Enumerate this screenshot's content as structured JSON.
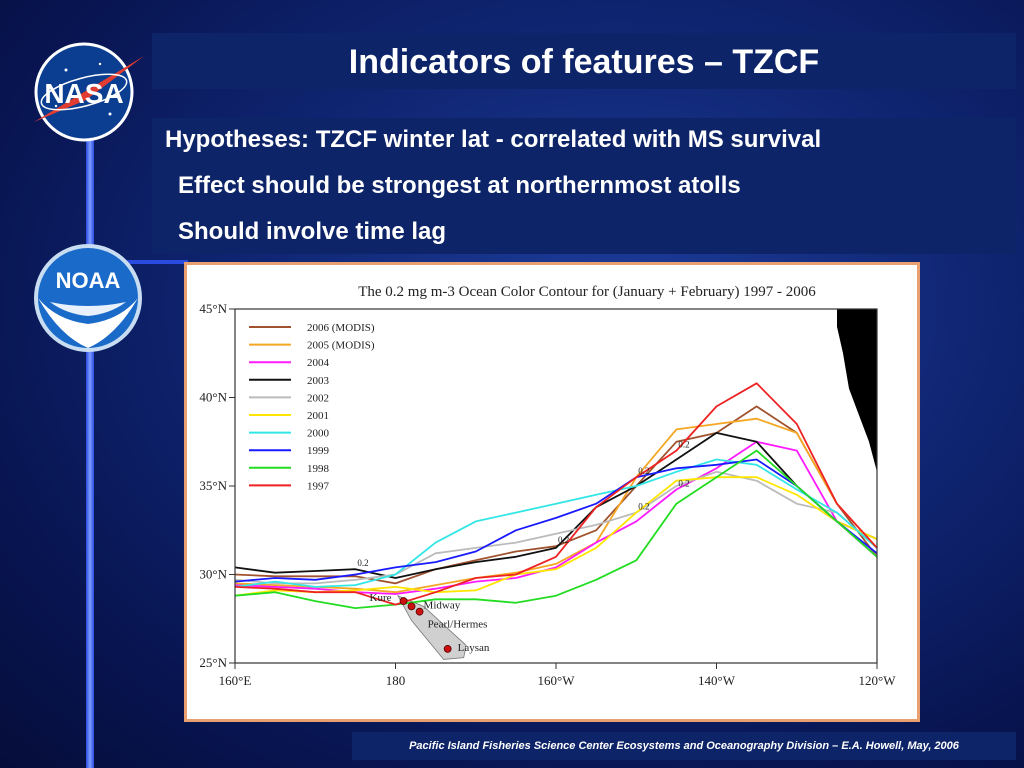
{
  "slide": {
    "title": "Indicators of features – TZCF",
    "hypotheses": [
      "Hypotheses: TZCF winter lat - correlated with MS survival",
      "Effect should be strongest at northernmost atolls",
      "Should involve time lag"
    ],
    "footer": "Pacific Island Fisheries Science Center Ecosystems and Oceanography Division – E.A. Howell, May, 2006",
    "logos": {
      "nasa": "NASA",
      "noaa": "NOAA"
    }
  },
  "chart_data": {
    "type": "line",
    "title": "The 0.2 mg m-3 Ocean Color Contour for (January + February) 1997 - 2006",
    "x_ticks": [
      "160°E",
      "180",
      "160°W",
      "140°W",
      "120°W"
    ],
    "x_tick_values": [
      160,
      180,
      200,
      220,
      240
    ],
    "y_ticks": [
      "45°N",
      "40°N",
      "35°N",
      "30°N",
      "25°N"
    ],
    "y_tick_values": [
      45,
      40,
      35,
      30,
      25
    ],
    "xlim": [
      160,
      240
    ],
    "ylim": [
      25,
      45
    ],
    "legend_position": "top-left",
    "contour_label": "0.2",
    "series": [
      {
        "name": "2006 (MODIS)",
        "color": "#a0522d",
        "x": [
          160,
          165,
          170,
          175,
          180,
          185,
          190,
          195,
          200,
          205,
          210,
          215,
          220,
          225,
          230,
          235,
          240
        ],
        "y": [
          30.0,
          29.9,
          29.9,
          29.9,
          29.5,
          30.3,
          30.8,
          31.3,
          31.6,
          32.5,
          35.0,
          37.5,
          38.0,
          39.5,
          38.0,
          34.0,
          31.0
        ]
      },
      {
        "name": "2005 (MODIS)",
        "color": "#f5a623",
        "x": [
          160,
          165,
          170,
          175,
          180,
          185,
          190,
          195,
          200,
          205,
          210,
          215,
          220,
          225,
          230,
          235,
          240
        ],
        "y": [
          29.5,
          29.4,
          29.3,
          29.2,
          29.0,
          29.4,
          29.8,
          30.1,
          30.6,
          31.8,
          35.5,
          38.2,
          38.5,
          38.8,
          38.0,
          34.0,
          31.5
        ]
      },
      {
        "name": "2004",
        "color": "#ff1aff",
        "x": [
          160,
          165,
          170,
          175,
          180,
          185,
          190,
          195,
          200,
          205,
          210,
          215,
          220,
          225,
          230,
          235,
          240
        ],
        "y": [
          29.4,
          29.3,
          29.2,
          29.0,
          28.9,
          29.2,
          29.6,
          29.8,
          30.4,
          31.8,
          33.0,
          34.8,
          36.0,
          37.5,
          37.0,
          33.0,
          31.0
        ]
      },
      {
        "name": "2003",
        "color": "#111111",
        "x": [
          160,
          165,
          170,
          175,
          180,
          185,
          190,
          195,
          200,
          205,
          210,
          215,
          220,
          225,
          230,
          235,
          240
        ],
        "y": [
          30.4,
          30.1,
          30.2,
          30.3,
          29.8,
          30.3,
          30.7,
          31.0,
          31.5,
          33.8,
          35.0,
          36.5,
          38.0,
          37.5,
          35.0,
          33.0,
          32.0
        ]
      },
      {
        "name": "2002",
        "color": "#bbbbbb",
        "x": [
          160,
          165,
          170,
          175,
          180,
          185,
          190,
          195,
          200,
          205,
          210,
          215,
          220,
          225,
          230,
          235,
          240
        ],
        "y": [
          29.7,
          29.5,
          29.5,
          29.7,
          30.0,
          31.2,
          31.5,
          31.8,
          32.3,
          32.8,
          33.5,
          35.0,
          35.8,
          35.3,
          34.0,
          33.5,
          31.5
        ]
      },
      {
        "name": "2001",
        "color": "#ffe600",
        "x": [
          160,
          165,
          170,
          175,
          180,
          185,
          190,
          195,
          200,
          205,
          210,
          215,
          220,
          225,
          230,
          235,
          240
        ],
        "y": [
          28.8,
          29.1,
          29.0,
          29.1,
          29.3,
          29.0,
          29.1,
          30.0,
          30.3,
          31.5,
          33.5,
          35.3,
          35.5,
          35.5,
          34.5,
          33.0,
          32.0
        ]
      },
      {
        "name": "2000",
        "color": "#33e6e6",
        "x": [
          160,
          165,
          170,
          175,
          180,
          185,
          190,
          195,
          200,
          205,
          210,
          215,
          220,
          225,
          230,
          235,
          240
        ],
        "y": [
          29.3,
          29.6,
          29.3,
          29.4,
          30.0,
          31.8,
          33.0,
          33.5,
          34.0,
          34.5,
          35.0,
          35.8,
          36.5,
          36.2,
          34.8,
          33.5,
          31.5
        ]
      },
      {
        "name": "1999",
        "color": "#1a1aff",
        "x": [
          160,
          165,
          170,
          175,
          180,
          185,
          190,
          195,
          200,
          205,
          210,
          215,
          220,
          225,
          230,
          235,
          240
        ],
        "y": [
          29.6,
          29.8,
          29.7,
          30.0,
          30.4,
          30.7,
          31.3,
          32.5,
          33.2,
          34.0,
          35.5,
          36.0,
          36.2,
          36.5,
          35.0,
          33.0,
          31.2
        ]
      },
      {
        "name": "1998",
        "color": "#22dd22",
        "x": [
          160,
          165,
          170,
          175,
          180,
          185,
          190,
          195,
          200,
          205,
          210,
          215,
          220,
          225,
          230,
          235,
          240
        ],
        "y": [
          28.8,
          29.0,
          28.5,
          28.1,
          28.3,
          28.6,
          28.6,
          28.4,
          28.8,
          29.7,
          30.8,
          34.0,
          35.5,
          37.0,
          35.0,
          33.0,
          31.0
        ]
      },
      {
        "name": "1997",
        "color": "#ee2222",
        "x": [
          160,
          165,
          170,
          175,
          180,
          185,
          190,
          195,
          200,
          205,
          210,
          215,
          220,
          225,
          230,
          235,
          240
        ],
        "y": [
          29.3,
          29.2,
          29.0,
          29.0,
          28.3,
          29.0,
          29.8,
          30.0,
          31.0,
          33.8,
          35.5,
          37.0,
          39.5,
          40.8,
          38.5,
          34.0,
          31.5
        ]
      }
    ],
    "islands": [
      {
        "name": "Kure",
        "lon": 181,
        "lat": 28.5
      },
      {
        "name": "Midway",
        "lon": 182,
        "lat": 28.2
      },
      {
        "name": "Pearl/Hermes",
        "lon": 183,
        "lat": 27.9
      },
      {
        "name": "Laysan",
        "lon": 186.5,
        "lat": 25.8
      }
    ]
  }
}
